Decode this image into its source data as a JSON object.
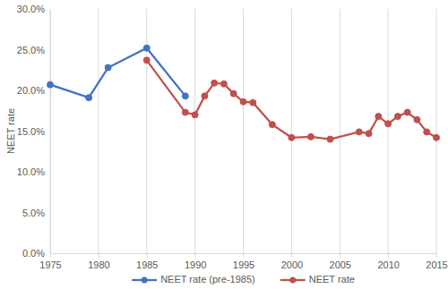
{
  "chart_data": {
    "type": "line",
    "y_label": "NEET rate",
    "x": [
      1975,
      1979,
      1981,
      1985,
      1989,
      1990,
      1991,
      1992,
      1993,
      1994,
      1995,
      1996,
      1998,
      2000,
      2002,
      2004,
      2007,
      2008,
      2009,
      2010,
      2011,
      2012,
      2013,
      2014,
      2015
    ],
    "series": [
      {
        "name": "NEET rate (pre-1985)",
        "color": "#4472c4",
        "marker": "circle",
        "values": [
          20.7,
          19.1,
          22.8,
          25.2,
          19.3,
          null,
          null,
          null,
          null,
          null,
          null,
          null,
          null,
          null,
          null,
          null,
          null,
          null,
          null,
          null,
          null,
          null,
          null,
          null,
          null
        ]
      },
      {
        "name": "NEET rate",
        "color": "#c0504d",
        "marker": "circle",
        "values": [
          null,
          null,
          null,
          23.7,
          17.3,
          17.0,
          19.3,
          20.9,
          20.8,
          19.6,
          18.6,
          18.5,
          15.8,
          14.2,
          14.3,
          14.0,
          14.9,
          14.7,
          16.8,
          15.9,
          16.8,
          17.3,
          16.4,
          14.9,
          14.2
        ]
      }
    ],
    "xlim": [
      1975,
      2015
    ],
    "xticks": [
      1975,
      1980,
      1985,
      1990,
      1995,
      2000,
      2005,
      2010,
      2015
    ],
    "ylim": [
      0,
      30
    ],
    "yticks": [
      {
        "value": 0,
        "label": "0.0%"
      },
      {
        "value": 5,
        "label": "5.0%"
      },
      {
        "value": 10,
        "label": "10.0%"
      },
      {
        "value": 15,
        "label": "15.0%"
      },
      {
        "value": 20,
        "label": "20.0%"
      },
      {
        "value": 25,
        "label": "25.0%"
      },
      {
        "value": 30,
        "label": "30.0%"
      }
    ],
    "grid": "x",
    "legend": "bottom"
  }
}
